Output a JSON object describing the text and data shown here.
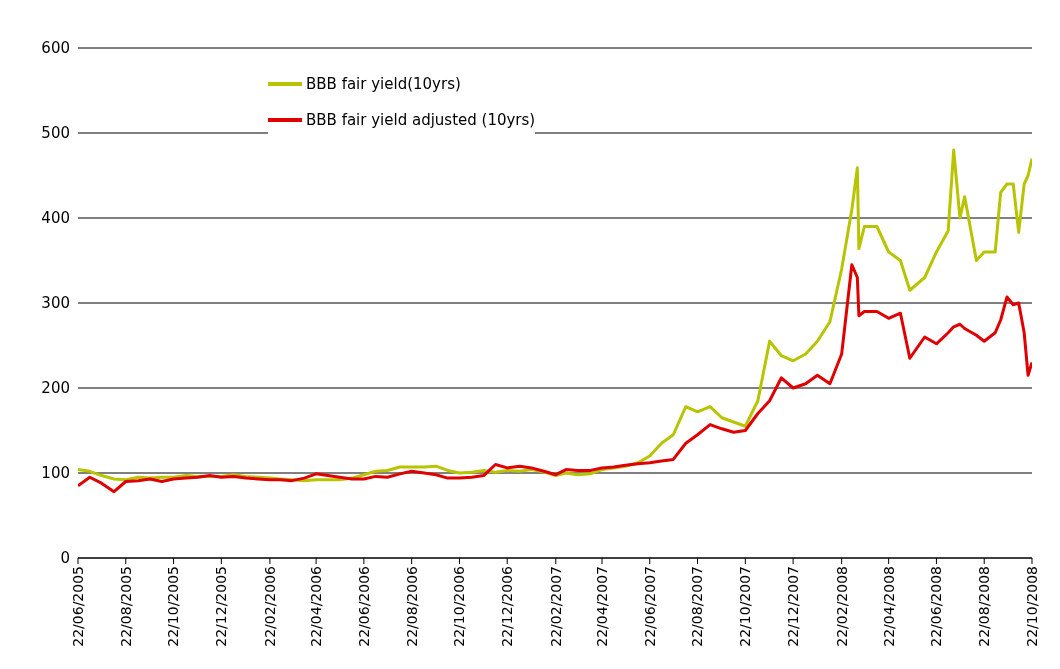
{
  "chart_data": {
    "type": "line",
    "x": [
      "2005-06-22",
      "2005-07-07",
      "2005-07-22",
      "2005-08-07",
      "2005-08-22",
      "2005-09-07",
      "2005-09-22",
      "2005-10-07",
      "2005-10-22",
      "2005-11-07",
      "2005-11-22",
      "2005-12-07",
      "2005-12-22",
      "2006-01-07",
      "2006-01-22",
      "2006-02-07",
      "2006-02-22",
      "2006-03-07",
      "2006-03-22",
      "2006-04-07",
      "2006-04-22",
      "2006-05-07",
      "2006-05-22",
      "2006-06-07",
      "2006-06-22",
      "2006-07-07",
      "2006-07-22",
      "2006-08-07",
      "2006-08-22",
      "2006-09-07",
      "2006-09-22",
      "2006-10-07",
      "2006-10-22",
      "2006-11-07",
      "2006-11-22",
      "2006-12-07",
      "2006-12-22",
      "2007-01-07",
      "2007-01-22",
      "2007-02-07",
      "2007-02-22",
      "2007-03-07",
      "2007-03-22",
      "2007-04-07",
      "2007-04-22",
      "2007-05-07",
      "2007-05-22",
      "2007-06-07",
      "2007-06-22",
      "2007-07-07",
      "2007-07-22",
      "2007-08-07",
      "2007-08-22",
      "2007-09-07",
      "2007-09-22",
      "2007-10-07",
      "2007-10-22",
      "2007-11-07",
      "2007-11-22",
      "2007-12-07",
      "2007-12-22",
      "2008-01-07",
      "2008-01-22",
      "2008-02-07",
      "2008-02-22",
      "2008-03-06",
      "2008-03-13",
      "2008-03-15",
      "2008-03-22",
      "2008-04-07",
      "2008-04-22",
      "2008-05-07",
      "2008-05-19",
      "2008-06-07",
      "2008-06-22",
      "2008-07-07",
      "2008-07-14",
      "2008-07-22",
      "2008-07-28",
      "2008-08-12",
      "2008-08-22",
      "2008-09-05",
      "2008-09-12",
      "2008-09-20",
      "2008-09-28",
      "2008-10-05",
      "2008-10-12",
      "2008-10-17",
      "2008-10-22"
    ],
    "series": [
      {
        "name": "BBB fair yield(10yrs)",
        "color": "#b8c400",
        "values": [
          104,
          102,
          97,
          93,
          92,
          95,
          94,
          95,
          95,
          97,
          96,
          96,
          96,
          98,
          96,
          95,
          94,
          93,
          92,
          91,
          92,
          92,
          92,
          94,
          98,
          102,
          103,
          107,
          107,
          107,
          108,
          103,
          100,
          101,
          103,
          101,
          103,
          102,
          104,
          101,
          97,
          100,
          98,
          99,
          104,
          106,
          108,
          112,
          120,
          135,
          145,
          178,
          172,
          178,
          165,
          160,
          155,
          185,
          255,
          238,
          232,
          240,
          255,
          278,
          340,
          410,
          459,
          364,
          390,
          390,
          360,
          350,
          315,
          330,
          360,
          385,
          480,
          400,
          425,
          350,
          360,
          360,
          430,
          440,
          440,
          383,
          440,
          450,
          470
        ]
      },
      {
        "name": "BBB fair yield adjusted (10yrs)",
        "color": "#e00000",
        "values": [
          85,
          95,
          88,
          78,
          90,
          91,
          93,
          90,
          93,
          94,
          95,
          97,
          95,
          96,
          94,
          93,
          92,
          92,
          91,
          94,
          99,
          97,
          95,
          93,
          93,
          96,
          95,
          99,
          102,
          100,
          98,
          94,
          94,
          95,
          97,
          110,
          106,
          108,
          106,
          102,
          98,
          104,
          103,
          103,
          106,
          107,
          109,
          111,
          112,
          114,
          116,
          135,
          145,
          157,
          152,
          148,
          150,
          170,
          185,
          212,
          200,
          205,
          215,
          205,
          240,
          345,
          330,
          285,
          290,
          290,
          282,
          288,
          235,
          260,
          252,
          265,
          272,
          275,
          270,
          262,
          255,
          265,
          280,
          307,
          298,
          300,
          265,
          215,
          230
        ]
      }
    ],
    "xlim": [
      "2005-06-22",
      "2008-10-22"
    ],
    "xticks": [
      {
        "value": "2005-06-22",
        "label": "22/06/2005"
      },
      {
        "value": "2005-08-22",
        "label": "22/08/2005"
      },
      {
        "value": "2005-10-22",
        "label": "22/10/2005"
      },
      {
        "value": "2005-12-22",
        "label": "22/12/2005"
      },
      {
        "value": "2006-02-22",
        "label": "22/02/2006"
      },
      {
        "value": "2006-04-22",
        "label": "22/04/2006"
      },
      {
        "value": "2006-06-22",
        "label": "22/06/2006"
      },
      {
        "value": "2006-08-22",
        "label": "22/08/2006"
      },
      {
        "value": "2006-10-22",
        "label": "22/10/2006"
      },
      {
        "value": "2006-12-22",
        "label": "22/12/2006"
      },
      {
        "value": "2007-02-22",
        "label": "22/02/2007"
      },
      {
        "value": "2007-04-22",
        "label": "22/04/2007"
      },
      {
        "value": "2007-06-22",
        "label": "22/06/2007"
      },
      {
        "value": "2007-08-22",
        "label": "22/08/2007"
      },
      {
        "value": "2007-10-22",
        "label": "22/10/2007"
      },
      {
        "value": "2007-12-22",
        "label": "22/12/2007"
      },
      {
        "value": "2008-02-22",
        "label": "22/02/2008"
      },
      {
        "value": "2008-04-22",
        "label": "22/04/2008"
      },
      {
        "value": "2008-06-22",
        "label": "22/06/2008"
      },
      {
        "value": "2008-08-22",
        "label": "22/08/2008"
      },
      {
        "value": "2008-10-22",
        "label": "22/10/2008"
      }
    ],
    "ylim": [
      0,
      600
    ],
    "yticks": [
      0,
      100,
      200,
      300,
      400,
      500,
      600
    ],
    "grid": "y",
    "legend": "top left",
    "marker": "none",
    "line_style": "solid"
  }
}
